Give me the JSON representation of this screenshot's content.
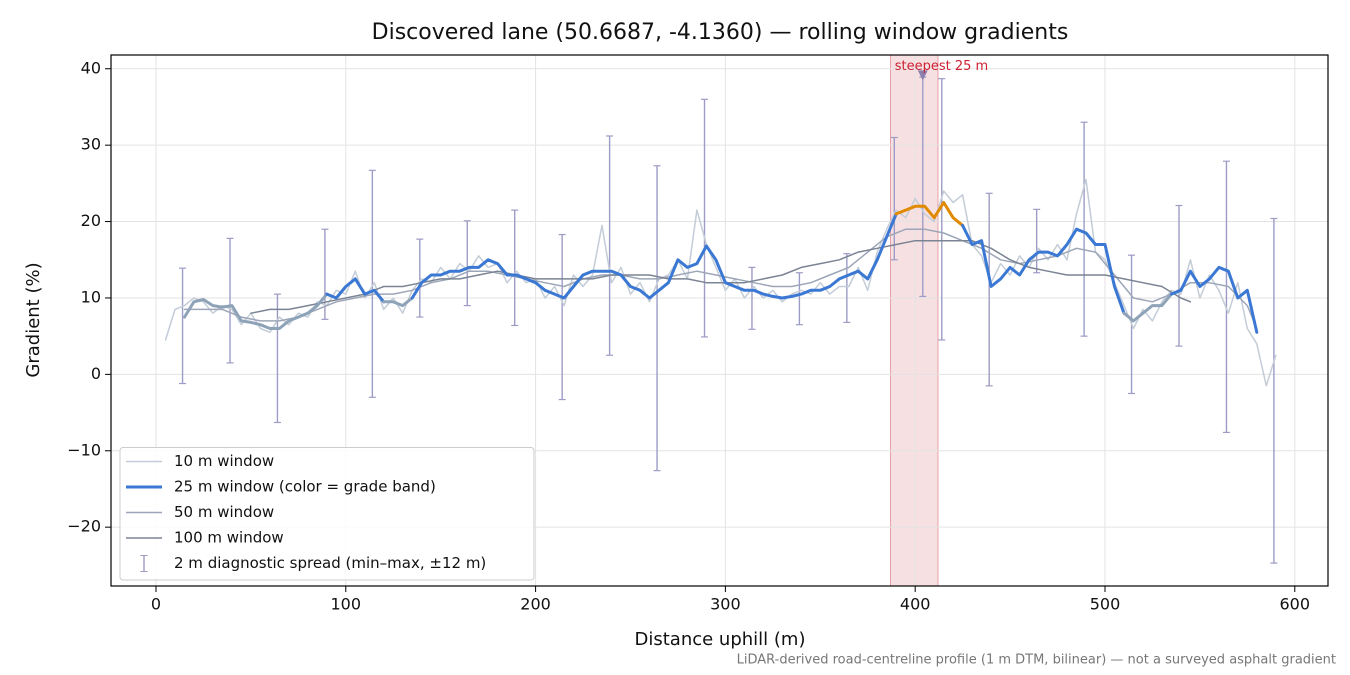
{
  "chart_data": {
    "type": "line",
    "title": "Discovered lane (50.6687, -4.1360) — rolling window gradients",
    "x_label": "Distance uphill (m)",
    "y_label": "Gradient (%)",
    "footnote": "LiDAR-derived road-centreline profile (1 m DTM, bilinear) — not a surveyed asphalt gradient",
    "xlim": [
      -23.7,
      617.5
    ],
    "ylim": [
      -27.7,
      41.8
    ],
    "xticks": [
      0,
      100,
      200,
      300,
      400,
      500,
      600
    ],
    "yticks": [
      {
        "value": -20,
        "label": "−20"
      },
      {
        "value": -10,
        "label": "−10"
      },
      0,
      10,
      20,
      30,
      40
    ],
    "grid": true,
    "legend": "lower left",
    "highlight": {
      "x0": 387,
      "x1": 412,
      "color": "#e8a0a8"
    },
    "annotation": {
      "text": "steepest 25 m",
      "x": 404,
      "y": 39,
      "color": "#cc2233",
      "marker_color": "#8a7fae"
    },
    "series": [
      {
        "name": "10 m window",
        "color": "#c3ccd7",
        "width": 1.5,
        "x": [
          5,
          10,
          15,
          20,
          25,
          30,
          35,
          40,
          45,
          50,
          55,
          60,
          65,
          70,
          75,
          80,
          85,
          90,
          95,
          100,
          105,
          110,
          115,
          120,
          125,
          130,
          135,
          140,
          145,
          150,
          155,
          160,
          165,
          170,
          175,
          180,
          185,
          190,
          195,
          200,
          205,
          210,
          215,
          220,
          225,
          230,
          235,
          240,
          245,
          250,
          255,
          260,
          265,
          270,
          275,
          280,
          285,
          290,
          295,
          300,
          305,
          310,
          315,
          320,
          325,
          330,
          335,
          340,
          345,
          350,
          355,
          360,
          365,
          370,
          375,
          380,
          385,
          390,
          395,
          400,
          405,
          410,
          415,
          420,
          425,
          430,
          435,
          440,
          445,
          450,
          455,
          460,
          465,
          470,
          475,
          480,
          485,
          490,
          495,
          500,
          505,
          510,
          515,
          520,
          525,
          530,
          535,
          540,
          545,
          550,
          555,
          560,
          565,
          570,
          575,
          580,
          585,
          590
        ],
        "values": [
          4.5,
          8.5,
          9.0,
          10.0,
          9.5,
          8.0,
          9.0,
          8.5,
          6.5,
          8.0,
          6.0,
          5.5,
          7.5,
          6.5,
          8.0,
          7.5,
          9.5,
          9.0,
          11.0,
          10.5,
          13.5,
          10.0,
          12.0,
          8.5,
          10.0,
          8.0,
          11.0,
          12.5,
          12.0,
          14.0,
          12.5,
          14.5,
          13.5,
          15.5,
          14.0,
          14.5,
          12.0,
          13.5,
          12.0,
          12.5,
          10.0,
          11.5,
          9.0,
          13.0,
          11.5,
          13.0,
          19.5,
          12.0,
          14.0,
          10.5,
          12.0,
          9.5,
          12.5,
          13.0,
          15.0,
          12.5,
          21.5,
          17.0,
          14.0,
          11.0,
          12.5,
          10.0,
          11.5,
          10.0,
          11.0,
          9.5,
          10.5,
          11.0,
          10.5,
          12.0,
          10.5,
          11.5,
          11.5,
          14.0,
          11.0,
          16.0,
          19.0,
          21.5,
          20.5,
          23.0,
          21.0,
          20.0,
          24.0,
          22.5,
          23.5,
          17.0,
          15.5,
          12.0,
          14.5,
          13.0,
          15.5,
          14.0,
          16.5,
          15.0,
          17.0,
          15.0,
          21.0,
          25.5,
          16.0,
          15.0,
          12.0,
          9.0,
          6.0,
          8.5,
          7.0,
          9.5,
          11.0,
          10.5,
          15.0,
          10.0,
          13.0,
          11.0,
          8.0,
          12.0,
          6.0,
          4.0,
          -1.5,
          2.5
        ]
      },
      {
        "name": "50 m window",
        "color": "#9ca6b8",
        "width": 1.5,
        "x": [
          15,
          25,
          35,
          45,
          55,
          65,
          75,
          85,
          95,
          105,
          115,
          125,
          135,
          145,
          155,
          165,
          175,
          185,
          195,
          205,
          215,
          225,
          235,
          245,
          255,
          265,
          275,
          285,
          295,
          305,
          315,
          325,
          335,
          345,
          355,
          365,
          375,
          385,
          395,
          405,
          415,
          425,
          435,
          445,
          455,
          465,
          475,
          485,
          495,
          505,
          515,
          525,
          535,
          545,
          555,
          565,
          575,
          580
        ],
        "values": [
          8.5,
          8.5,
          8.5,
          7.5,
          7.0,
          7.0,
          7.5,
          8.5,
          9.5,
          10.0,
          10.5,
          10.5,
          11.0,
          12.0,
          12.5,
          13.5,
          13.5,
          13.0,
          12.5,
          12.0,
          11.5,
          12.5,
          13.0,
          13.0,
          12.5,
          12.5,
          13.0,
          13.5,
          13.0,
          12.5,
          12.0,
          11.5,
          11.5,
          12.0,
          13.0,
          14.0,
          16.0,
          18.0,
          19.0,
          19.0,
          18.5,
          17.5,
          16.5,
          15.0,
          14.5,
          15.0,
          15.5,
          16.5,
          16.0,
          13.0,
          10.0,
          9.5,
          10.5,
          12.0,
          12.0,
          11.5,
          9.0,
          6.0
        ]
      },
      {
        "name": "100 m window",
        "color": "#7b8494",
        "width": 1.5,
        "x": [
          50,
          60,
          70,
          80,
          90,
          100,
          110,
          120,
          130,
          140,
          150,
          160,
          170,
          180,
          190,
          200,
          210,
          220,
          230,
          240,
          250,
          260,
          270,
          280,
          290,
          300,
          310,
          320,
          330,
          340,
          350,
          360,
          370,
          380,
          390,
          400,
          410,
          420,
          430,
          440,
          450,
          460,
          470,
          480,
          490,
          500,
          510,
          520,
          530,
          540,
          545
        ],
        "values": [
          8.0,
          8.5,
          8.5,
          9.0,
          9.5,
          10.0,
          10.5,
          11.5,
          11.5,
          12.0,
          12.5,
          12.5,
          13.0,
          13.5,
          13.0,
          12.5,
          12.5,
          12.5,
          12.5,
          13.0,
          13.0,
          13.0,
          12.5,
          12.5,
          12.0,
          12.0,
          12.0,
          12.5,
          13.0,
          14.0,
          14.5,
          15.0,
          16.0,
          16.5,
          17.0,
          17.5,
          17.5,
          17.5,
          17.5,
          16.5,
          15.0,
          14.0,
          13.5,
          13.0,
          13.0,
          13.0,
          12.5,
          12.0,
          11.5,
          10.0,
          9.5
        ]
      },
      {
        "name": "25 m window (color = grade band)",
        "color": "#3a78d4",
        "width": 3,
        "grade_bands": [
          {
            "below": 10,
            "color": "#8fa3b8"
          },
          {
            "below": 20,
            "color": "#3a78d4"
          },
          {
            "color": "#e08a00"
          }
        ],
        "x": [
          15,
          20,
          25,
          30,
          35,
          40,
          45,
          50,
          55,
          60,
          65,
          70,
          75,
          80,
          85,
          90,
          95,
          100,
          105,
          110,
          115,
          120,
          125,
          130,
          135,
          140,
          145,
          150,
          155,
          160,
          165,
          170,
          175,
          180,
          185,
          190,
          195,
          200,
          205,
          210,
          215,
          220,
          225,
          230,
          235,
          240,
          245,
          250,
          255,
          260,
          265,
          270,
          275,
          280,
          285,
          290,
          295,
          300,
          305,
          310,
          315,
          320,
          325,
          330,
          335,
          340,
          345,
          350,
          355,
          360,
          365,
          370,
          375,
          380,
          385,
          390,
          395,
          400,
          405,
          410,
          415,
          420,
          425,
          430,
          435,
          440,
          445,
          450,
          455,
          460,
          465,
          470,
          475,
          480,
          485,
          490,
          495,
          500,
          505,
          510,
          515,
          520,
          525,
          530,
          535,
          540,
          545,
          550,
          555,
          560,
          565,
          570,
          575,
          580
        ],
        "values": [
          7.5,
          9.5,
          9.8,
          9.0,
          8.8,
          9.0,
          7.0,
          6.8,
          6.5,
          6.0,
          6.0,
          7.0,
          7.5,
          8.0,
          9.0,
          10.5,
          10.0,
          11.5,
          12.5,
          10.5,
          11.0,
          9.5,
          9.5,
          9.0,
          10.0,
          12.0,
          13.0,
          13.0,
          13.5,
          13.5,
          14.0,
          14.0,
          15.0,
          14.5,
          13.0,
          13.0,
          12.5,
          12.0,
          11.0,
          10.5,
          10.0,
          11.5,
          13.0,
          13.5,
          13.5,
          13.5,
          13.0,
          11.5,
          11.0,
          10.0,
          11.0,
          12.0,
          15.0,
          14.0,
          14.5,
          16.8,
          15.0,
          12.0,
          11.5,
          11.0,
          11.0,
          10.5,
          10.2,
          10.0,
          10.2,
          10.5,
          11.0,
          11.0,
          11.5,
          12.5,
          13.0,
          13.5,
          12.5,
          15.0,
          18.0,
          21.0,
          21.5,
          22.0,
          22.0,
          20.5,
          22.5,
          20.5,
          19.5,
          17.0,
          17.5,
          11.5,
          12.5,
          14.0,
          13.0,
          15.0,
          16.0,
          16.0,
          15.5,
          17.0,
          19.0,
          18.5,
          17.0,
          17.0,
          11.5,
          8.0,
          7.0,
          8.0,
          9.0,
          9.0,
          10.5,
          11.0,
          13.5,
          11.5,
          12.5,
          14.0,
          13.5,
          10.0,
          11.0,
          5.5
        ]
      }
    ],
    "spread": {
      "name": "2 m diagnostic spread (min–max, ±12 m)",
      "color": "#9d9cc6",
      "x": [
        14,
        39,
        64,
        89,
        114,
        139,
        164,
        189,
        214,
        239,
        264,
        289,
        314,
        339,
        364,
        389,
        404,
        414,
        439,
        464,
        489,
        514,
        539,
        564,
        589
      ],
      "low": [
        -1.2,
        1.5,
        -6.3,
        7.2,
        -3.0,
        7.5,
        9.0,
        6.4,
        -3.3,
        2.5,
        -12.6,
        4.9,
        5.9,
        6.5,
        6.8,
        15.0,
        10.2,
        4.5,
        -1.5,
        13.3,
        5.0,
        -2.5,
        3.7,
        -7.6,
        -24.7
      ],
      "high": [
        13.9,
        17.8,
        10.5,
        19.0,
        26.7,
        17.7,
        20.1,
        21.5,
        18.3,
        31.2,
        27.3,
        36.0,
        14.0,
        13.3,
        15.8,
        31.0,
        38.9,
        38.7,
        23.7,
        21.6,
        33.0,
        15.6,
        22.1,
        27.9,
        20.4
      ]
    }
  }
}
